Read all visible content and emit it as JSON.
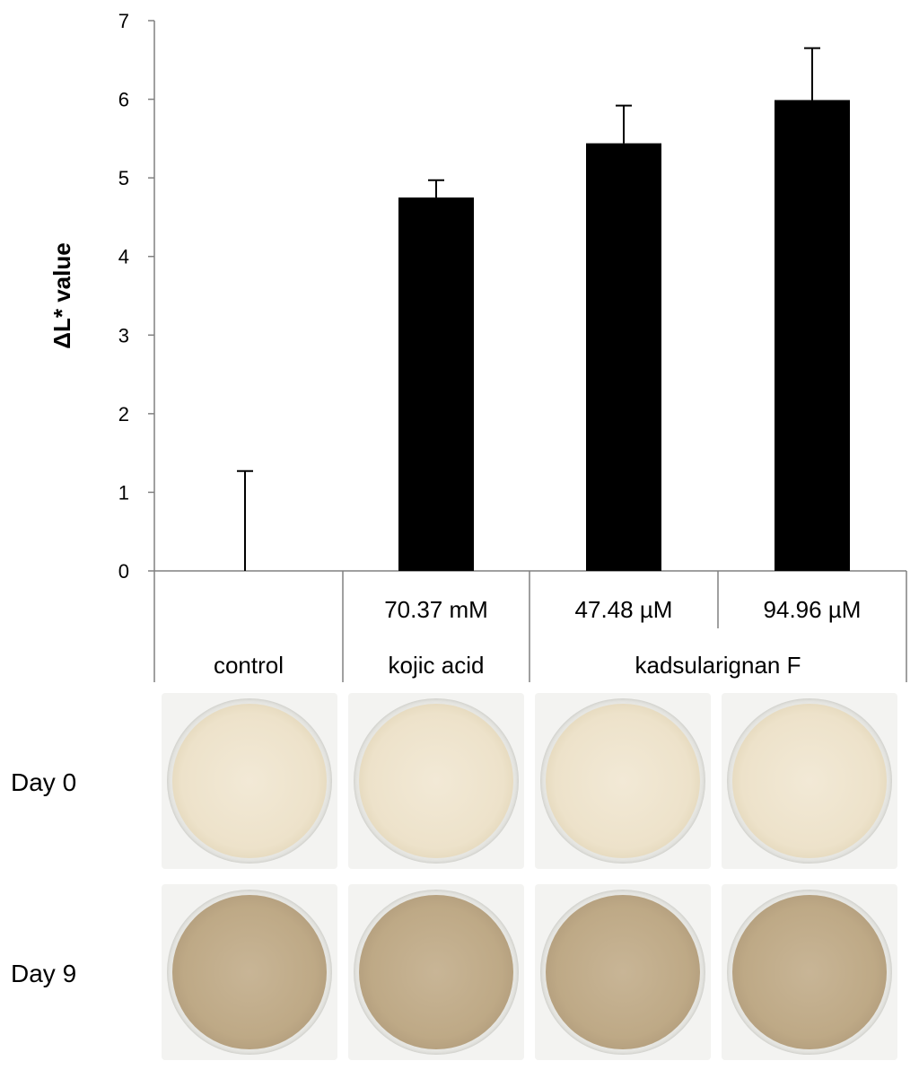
{
  "chart_data": {
    "type": "bar",
    "ylabel": "ΔL* value",
    "ylim": [
      0,
      7
    ],
    "yticks": [
      0,
      1,
      2,
      3,
      4,
      5,
      6,
      7
    ],
    "categories": [
      "control",
      "kojic acid 70.37 mM",
      "kadsularignan F 47.48 µM",
      "kadsularignan F 94.96 µM"
    ],
    "values": [
      0.0,
      4.75,
      5.44,
      5.99
    ],
    "errors": [
      1.27,
      0.22,
      0.48,
      0.66
    ],
    "bar_color": "#000000",
    "grid": false,
    "concentration_labels": [
      "",
      "70.37 mM",
      "47.48 µM",
      "94.96 µM"
    ],
    "group_labels": [
      {
        "label": "control",
        "span": [
          0,
          0
        ]
      },
      {
        "label": "kojic acid",
        "span": [
          1,
          1
        ]
      },
      {
        "label": "kadsularignan F",
        "span": [
          2,
          3
        ]
      }
    ]
  },
  "image_rows": [
    {
      "label": "Day 0"
    },
    {
      "label": "Day 9"
    }
  ]
}
